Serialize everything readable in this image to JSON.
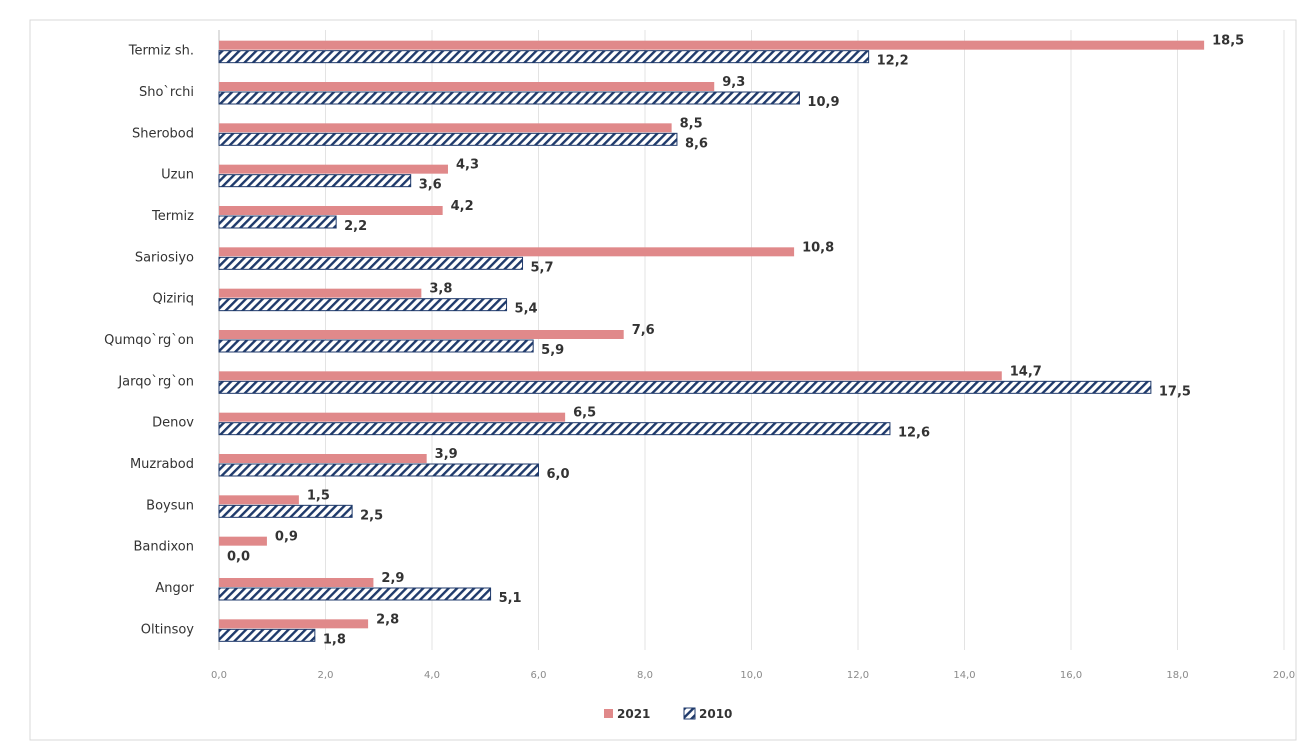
{
  "chart_data": {
    "type": "bar",
    "orientation": "horizontal",
    "categories": [
      "Termiz sh.",
      "Sho`rchi",
      "Sherobod",
      "Uzun",
      "Termiz",
      "Sariosiyo",
      "Qiziriq",
      "Qumqo`rg`on",
      "Jarqo`rg`on",
      "Denov",
      "Muzrabod",
      "Boysun",
      "Bandixon",
      "Angor",
      "Oltinsoy"
    ],
    "series": [
      {
        "name": "2021",
        "values": [
          18.5,
          9.3,
          8.5,
          4.3,
          4.2,
          10.8,
          3.8,
          7.6,
          14.7,
          6.5,
          3.9,
          1.5,
          0.9,
          2.9,
          2.8
        ],
        "color": "#e0898a",
        "pattern": "solid"
      },
      {
        "name": "2010",
        "values": [
          12.2,
          10.9,
          8.6,
          3.6,
          2.2,
          5.7,
          5.4,
          5.9,
          17.5,
          12.6,
          6.0,
          2.5,
          0.0,
          5.1,
          1.8
        ],
        "color": "#1f3a6b",
        "pattern": "diagonal-hatch"
      }
    ],
    "value_labels": {
      "2021": [
        "18,5",
        "9,3",
        "8,5",
        "4,3",
        "4,2",
        "10,8",
        "3,8",
        "7,6",
        "14,7",
        "6,5",
        "3,9",
        "1,5",
        "0,9",
        "2,9",
        "2,8"
      ],
      "2010": [
        "12,2",
        "10,9",
        "8,6",
        "3,6",
        "2,2",
        "5,7",
        "5,4",
        "5,9",
        "17,5",
        "12,6",
        "6,0",
        "2,5",
        "0,0",
        "5,1",
        "1,8"
      ]
    },
    "xlim": [
      0,
      20
    ],
    "x_ticks": [
      0,
      2,
      4,
      6,
      8,
      10,
      12,
      14,
      16,
      18,
      20
    ],
    "x_tick_labels": [
      "0,0",
      "2,0",
      "4,0",
      "6,0",
      "8,0",
      "10,0",
      "12,0",
      "14,0",
      "16,0",
      "18,0",
      "20,0"
    ],
    "title": "",
    "xlabel": "",
    "ylabel": "",
    "grid": "vertical",
    "legend_position": "bottom"
  }
}
